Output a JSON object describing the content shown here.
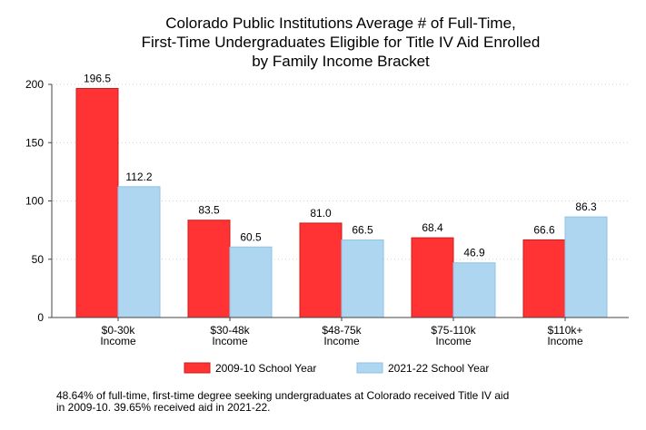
{
  "chart_data": {
    "type": "bar",
    "title": [
      "Colorado Public Institutions Average # of Full-Time,",
      "First-Time Undergraduates Eligible for Title IV Aid Enrolled",
      "by Family Income Bracket"
    ],
    "categories": [
      [
        "$0-30k",
        "Income"
      ],
      [
        "$30-48k",
        "Income"
      ],
      [
        "$48-75k",
        "Income"
      ],
      [
        "$75-110k",
        "Income"
      ],
      [
        "$110k+",
        "Income"
      ]
    ],
    "series": [
      {
        "name": "2009-10 School Year",
        "color": "#ff3333",
        "stroke": "#c81e1e",
        "values": [
          196.5,
          83.5,
          81.0,
          68.4,
          66.6
        ],
        "labels": [
          "196.5",
          "83.5",
          "81.0",
          "68.4",
          "66.6"
        ]
      },
      {
        "name": "2021-22 School Year",
        "color": "#aed6f1",
        "stroke": "#8fc3e6",
        "values": [
          112.2,
          60.5,
          66.5,
          46.9,
          86.3
        ],
        "labels": [
          "112.2",
          "60.5",
          "66.5",
          "46.9",
          "86.3"
        ]
      }
    ],
    "yticks": [
      "0",
      "50",
      "100",
      "150",
      "200"
    ],
    "ylim": [
      0,
      200
    ],
    "grid": true,
    "legend": "bottom"
  },
  "footnote": [
    "48.64% of full-time, first-time degree seeking undergraduates at Colorado received Title IV aid",
    "in 2009-10. 39.65% received aid in 2021-22."
  ]
}
